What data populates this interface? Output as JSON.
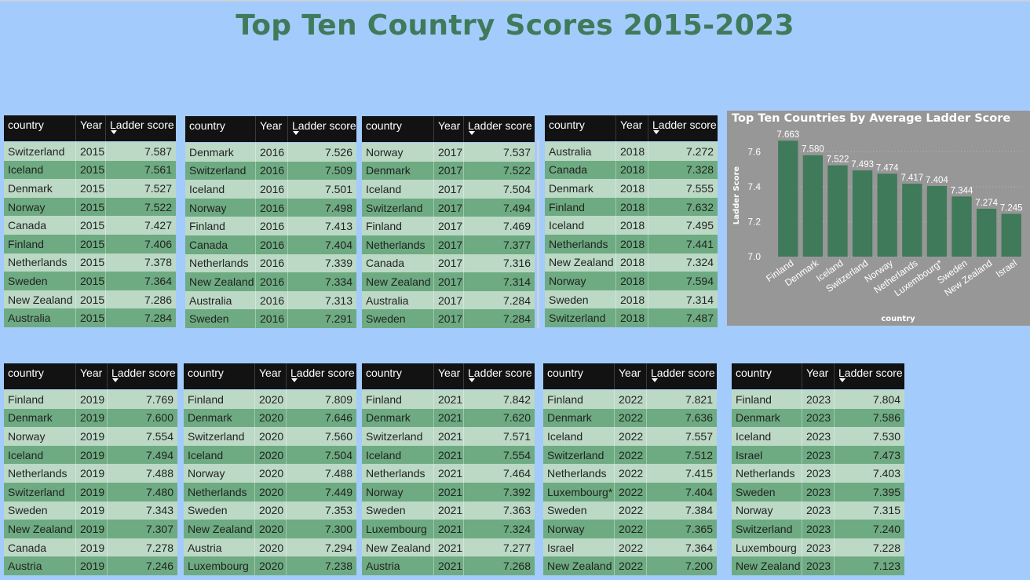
{
  "title": "Top Ten Country Scores 2015-2023",
  "colors": {
    "background": "#a3cbfb",
    "title": "#3f7a5a",
    "header": "#121212",
    "row_light": "#bcd9c6",
    "row_dark": "#6eab82",
    "bar": "#3f7a5a",
    "chart_bg": "#979797"
  },
  "columns": {
    "country": "country",
    "year": "Year",
    "score": "Ladder score"
  },
  "tables": [
    {
      "rows": [
        [
          "Switzerland",
          "2015",
          "7.587"
        ],
        [
          "Iceland",
          "2015",
          "7.561"
        ],
        [
          "Denmark",
          "2015",
          "7.527"
        ],
        [
          "Norway",
          "2015",
          "7.522"
        ],
        [
          "Canada",
          "2015",
          "7.427"
        ],
        [
          "Finland",
          "2015",
          "7.406"
        ],
        [
          "Netherlands",
          "2015",
          "7.378"
        ],
        [
          "Sweden",
          "2015",
          "7.364"
        ],
        [
          "New Zealand",
          "2015",
          "7.286"
        ],
        [
          "Australia",
          "2015",
          "7.284"
        ]
      ]
    },
    {
      "rows": [
        [
          "Denmark",
          "2016",
          "7.526"
        ],
        [
          "Switzerland",
          "2016",
          "7.509"
        ],
        [
          "Iceland",
          "2016",
          "7.501"
        ],
        [
          "Norway",
          "2016",
          "7.498"
        ],
        [
          "Finland",
          "2016",
          "7.413"
        ],
        [
          "Canada",
          "2016",
          "7.404"
        ],
        [
          "Netherlands",
          "2016",
          "7.339"
        ],
        [
          "New Zealand",
          "2016",
          "7.334"
        ],
        [
          "Australia",
          "2016",
          "7.313"
        ],
        [
          "Sweden",
          "2016",
          "7.291"
        ]
      ]
    },
    {
      "rows": [
        [
          "Norway",
          "2017",
          "7.537"
        ],
        [
          "Denmark",
          "2017",
          "7.522"
        ],
        [
          "Iceland",
          "2017",
          "7.504"
        ],
        [
          "Switzerland",
          "2017",
          "7.494"
        ],
        [
          "Finland",
          "2017",
          "7.469"
        ],
        [
          "Netherlands",
          "2017",
          "7.377"
        ],
        [
          "Canada",
          "2017",
          "7.316"
        ],
        [
          "New Zealand",
          "2017",
          "7.314"
        ],
        [
          "Australia",
          "2017",
          "7.284"
        ],
        [
          "Sweden",
          "2017",
          "7.284"
        ]
      ]
    },
    {
      "rows": [
        [
          "Australia",
          "2018",
          "7.272"
        ],
        [
          "Canada",
          "2018",
          "7.328"
        ],
        [
          "Denmark",
          "2018",
          "7.555"
        ],
        [
          "Finland",
          "2018",
          "7.632"
        ],
        [
          "Iceland",
          "2018",
          "7.495"
        ],
        [
          "Netherlands",
          "2018",
          "7.441"
        ],
        [
          "New Zealand",
          "2018",
          "7.324"
        ],
        [
          "Norway",
          "2018",
          "7.594"
        ],
        [
          "Sweden",
          "2018",
          "7.314"
        ],
        [
          "Switzerland",
          "2018",
          "7.487"
        ]
      ]
    },
    {
      "rows": [
        [
          "Finland",
          "2019",
          "7.769"
        ],
        [
          "Denmark",
          "2019",
          "7.600"
        ],
        [
          "Norway",
          "2019",
          "7.554"
        ],
        [
          "Iceland",
          "2019",
          "7.494"
        ],
        [
          "Netherlands",
          "2019",
          "7.488"
        ],
        [
          "Switzerland",
          "2019",
          "7.480"
        ],
        [
          "Sweden",
          "2019",
          "7.343"
        ],
        [
          "New Zealand",
          "2019",
          "7.307"
        ],
        [
          "Canada",
          "2019",
          "7.278"
        ],
        [
          "Austria",
          "2019",
          "7.246"
        ]
      ]
    },
    {
      "rows": [
        [
          "Finland",
          "2020",
          "7.809"
        ],
        [
          "Denmark",
          "2020",
          "7.646"
        ],
        [
          "Switzerland",
          "2020",
          "7.560"
        ],
        [
          "Iceland",
          "2020",
          "7.504"
        ],
        [
          "Norway",
          "2020",
          "7.488"
        ],
        [
          "Netherlands",
          "2020",
          "7.449"
        ],
        [
          "Sweden",
          "2020",
          "7.353"
        ],
        [
          "New Zealand",
          "2020",
          "7.300"
        ],
        [
          "Austria",
          "2020",
          "7.294"
        ],
        [
          "Luxembourg",
          "2020",
          "7.238"
        ]
      ]
    },
    {
      "rows": [
        [
          "Finland",
          "2021",
          "7.842"
        ],
        [
          "Denmark",
          "2021",
          "7.620"
        ],
        [
          "Switzerland",
          "2021",
          "7.571"
        ],
        [
          "Iceland",
          "2021",
          "7.554"
        ],
        [
          "Netherlands",
          "2021",
          "7.464"
        ],
        [
          "Norway",
          "2021",
          "7.392"
        ],
        [
          "Sweden",
          "2021",
          "7.363"
        ],
        [
          "Luxembourg",
          "2021",
          "7.324"
        ],
        [
          "New Zealand",
          "2021",
          "7.277"
        ],
        [
          "Austria",
          "2021",
          "7.268"
        ]
      ]
    },
    {
      "rows": [
        [
          "Finland",
          "2022",
          "7.821"
        ],
        [
          "Denmark",
          "2022",
          "7.636"
        ],
        [
          "Iceland",
          "2022",
          "7.557"
        ],
        [
          "Switzerland",
          "2022",
          "7.512"
        ],
        [
          "Netherlands",
          "2022",
          "7.415"
        ],
        [
          "Luxembourg*",
          "2022",
          "7.404"
        ],
        [
          "Sweden",
          "2022",
          "7.384"
        ],
        [
          "Norway",
          "2022",
          "7.365"
        ],
        [
          "Israel",
          "2022",
          "7.364"
        ],
        [
          "New Zealand",
          "2022",
          "7.200"
        ]
      ]
    },
    {
      "rows": [
        [
          "Finland",
          "2023",
          "7.804"
        ],
        [
          "Denmark",
          "2023",
          "7.586"
        ],
        [
          "Iceland",
          "2023",
          "7.530"
        ],
        [
          "Israel",
          "2023",
          "7.473"
        ],
        [
          "Netherlands",
          "2023",
          "7.403"
        ],
        [
          "Sweden",
          "2023",
          "7.395"
        ],
        [
          "Norway",
          "2023",
          "7.315"
        ],
        [
          "Switzerland",
          "2023",
          "7.240"
        ],
        [
          "Luxembourg",
          "2023",
          "7.228"
        ],
        [
          "New Zealand",
          "2023",
          "7.123"
        ]
      ]
    }
  ],
  "chart_data": {
    "type": "bar",
    "title": "Top Ten Countries by Average Ladder Score",
    "xlabel": "country",
    "ylabel": "Ladder Score",
    "categories": [
      "Finland",
      "Denmark",
      "Iceland",
      "Switzerland",
      "Norway",
      "Netherlands",
      "Luxembourg*",
      "Sweden",
      "New Zealand",
      "Israel"
    ],
    "values": [
      7.663,
      7.58,
      7.522,
      7.493,
      7.474,
      7.417,
      7.404,
      7.344,
      7.274,
      7.245
    ],
    "value_labels": [
      "7.663",
      "7.580",
      "7.522",
      "7.493",
      "7.474",
      "7.417",
      "7.404",
      "7.344",
      "7.274",
      "7.245"
    ],
    "yticks": [
      "7.0",
      "7.2",
      "7.4",
      "7.6"
    ],
    "ylim": [
      7.0,
      7.7
    ],
    "grid": true
  }
}
